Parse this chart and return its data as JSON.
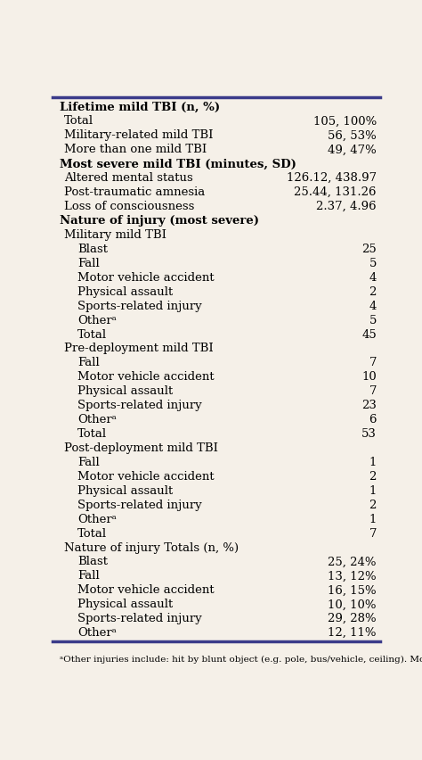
{
  "bg_color": "#f5f0e8",
  "text_color": "#000000",
  "font_size": 9.5,
  "rows": [
    {
      "label": "Lifetime mild TBI (n, %)",
      "value": "",
      "indent": 0,
      "bold": true
    },
    {
      "label": "Total",
      "value": "105, 100%",
      "indent": 1,
      "bold": false
    },
    {
      "label": "Military-related mild TBI",
      "value": "56, 53%",
      "indent": 1,
      "bold": false
    },
    {
      "label": "More than one mild TBI",
      "value": "49, 47%",
      "indent": 1,
      "bold": false
    },
    {
      "label": "Most severe mild TBI (minutes, SD)",
      "value": "",
      "indent": 0,
      "bold": true
    },
    {
      "label": "Altered mental status",
      "value": "126.12, 438.97",
      "indent": 1,
      "bold": false
    },
    {
      "label": "Post-traumatic amnesia",
      "value": "25.44, 131.26",
      "indent": 1,
      "bold": false
    },
    {
      "label": "Loss of consciousness",
      "value": "2.37, 4.96",
      "indent": 1,
      "bold": false
    },
    {
      "label": "Nature of injury (most severe)",
      "value": "",
      "indent": 0,
      "bold": true
    },
    {
      "label": "Military mild TBI",
      "value": "",
      "indent": 1,
      "bold": false
    },
    {
      "label": "Blast",
      "value": "25",
      "indent": 2,
      "bold": false
    },
    {
      "label": "Fall",
      "value": "5",
      "indent": 2,
      "bold": false
    },
    {
      "label": "Motor vehicle accident",
      "value": "4",
      "indent": 2,
      "bold": false
    },
    {
      "label": "Physical assault",
      "value": "2",
      "indent": 2,
      "bold": false
    },
    {
      "label": "Sports-related injury",
      "value": "4",
      "indent": 2,
      "bold": false
    },
    {
      "label": "Otherᵃ",
      "value": "5",
      "indent": 2,
      "bold": false
    },
    {
      "label": "Total",
      "value": "45",
      "indent": 2,
      "bold": false
    },
    {
      "label": "Pre-deployment mild TBI",
      "value": "",
      "indent": 1,
      "bold": false
    },
    {
      "label": "Fall",
      "value": "7",
      "indent": 2,
      "bold": false
    },
    {
      "label": "Motor vehicle accident",
      "value": "10",
      "indent": 2,
      "bold": false
    },
    {
      "label": "Physical assault",
      "value": "7",
      "indent": 2,
      "bold": false
    },
    {
      "label": "Sports-related injury",
      "value": "23",
      "indent": 2,
      "bold": false
    },
    {
      "label": "Otherᵃ",
      "value": "6",
      "indent": 2,
      "bold": false
    },
    {
      "label": "Total",
      "value": "53",
      "indent": 2,
      "bold": false
    },
    {
      "label": "Post-deployment mild TBI",
      "value": "",
      "indent": 1,
      "bold": false
    },
    {
      "label": "Fall",
      "value": "1",
      "indent": 2,
      "bold": false
    },
    {
      "label": "Motor vehicle accident",
      "value": "2",
      "indent": 2,
      "bold": false
    },
    {
      "label": "Physical assault",
      "value": "1",
      "indent": 2,
      "bold": false
    },
    {
      "label": "Sports-related injury",
      "value": "2",
      "indent": 2,
      "bold": false
    },
    {
      "label": "Otherᵃ",
      "value": "1",
      "indent": 2,
      "bold": false
    },
    {
      "label": "Total",
      "value": "7",
      "indent": 2,
      "bold": false
    },
    {
      "label": "Nature of injury Totals (n, %)",
      "value": "",
      "indent": 1,
      "bold": false
    },
    {
      "label": "Blast",
      "value": "25, 24%",
      "indent": 2,
      "bold": false
    },
    {
      "label": "Fall",
      "value": "13, 12%",
      "indent": 2,
      "bold": false
    },
    {
      "label": "Motor vehicle accident",
      "value": "16, 15%",
      "indent": 2,
      "bold": false
    },
    {
      "label": "Physical assault",
      "value": "10, 10%",
      "indent": 2,
      "bold": false
    },
    {
      "label": "Sports-related injury",
      "value": "29, 28%",
      "indent": 2,
      "bold": false
    },
    {
      "label": "Otherᵃ",
      "value": "12, 11%",
      "indent": 2,
      "bold": false
    }
  ],
  "footnote": "ᵃOther injuries include: hit by blunt object (e.g. pole, bus/vehicle, ceiling). More seve...",
  "border_color": "#3b3b8a"
}
